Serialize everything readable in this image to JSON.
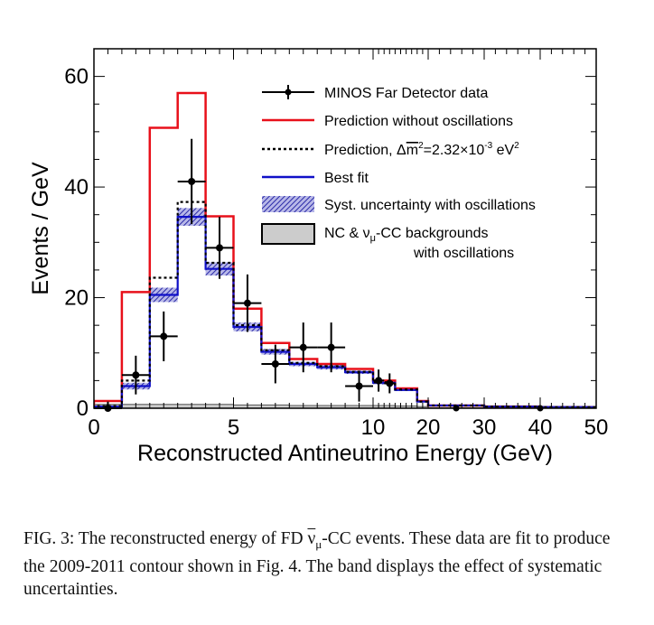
{
  "chart_data": {
    "type": "histogram",
    "xlabel": "Reconstructed Antineutrino Energy (GeV)",
    "ylabel": "Events / GeV",
    "ylim": [
      0,
      65
    ],
    "x_axis": "piecewise: linear 0-10 GeV on left two thirds, compressed 10-20 and 20-50 GeV on right",
    "x_ticks": [
      "0",
      "5",
      "10",
      "20",
      "30",
      "40",
      "50"
    ],
    "y_ticks": [
      "0",
      "20",
      "40",
      "60"
    ],
    "bin_edges": [
      0,
      1,
      2,
      3,
      4,
      5,
      6,
      7,
      8,
      9,
      10,
      12,
      14,
      16,
      18,
      20,
      30,
      40,
      50
    ],
    "series": [
      {
        "name": "Prediction without oscillations",
        "color": "#e8101a",
        "style": "solid",
        "values": [
          1.3,
          21.0,
          50.7,
          57.0,
          34.7,
          18.0,
          11.8,
          8.9,
          8.0,
          7.1,
          5.0,
          5.0,
          3.6,
          3.6,
          1.3,
          0.5,
          0.3,
          0.2
        ]
      },
      {
        "name": "Prediction, Δm² = 2.32×10⁻³ eV²",
        "color": "#000000",
        "style": "dotted",
        "values": [
          0.4,
          5.0,
          23.6,
          37.3,
          26.3,
          15.0,
          10.5,
          8.2,
          7.6,
          6.6,
          4.7,
          4.7,
          3.4,
          3.4,
          1.2,
          0.5,
          0.3,
          0.2
        ]
      },
      {
        "name": "Best fit",
        "color": "#1010c8",
        "style": "solid",
        "values": [
          0.3,
          4.0,
          20.5,
          34.6,
          25.2,
          14.7,
          10.2,
          8.0,
          7.4,
          6.5,
          4.6,
          4.6,
          3.3,
          3.3,
          1.2,
          0.5,
          0.3,
          0.2
        ]
      },
      {
        "name": "Syst. uncertainty with oscillations",
        "color": "#3030b0",
        "style": "band",
        "half_width": [
          0.2,
          0.6,
          1.3,
          1.6,
          1.2,
          0.8,
          0.5,
          0.4,
          0.4,
          0.3,
          0.3,
          0.3,
          0.2,
          0.2,
          0.1,
          0.1,
          0.1,
          0.1
        ]
      },
      {
        "name": "NC & νμ-CC backgrounds with oscillations",
        "color": "#cccccc",
        "style": "filled",
        "values": [
          0.7,
          0.7,
          0.7,
          0.7,
          0.7,
          0.6,
          0.6,
          0.5,
          0.5,
          0.5,
          0.5,
          0.5,
          0.4,
          0.4,
          0.3,
          0.1,
          0.1,
          0.1
        ]
      }
    ],
    "data_points": {
      "name": "MINOS Far Detector data",
      "x": [
        0.5,
        1.5,
        2.5,
        3.5,
        4.5,
        5.5,
        6.5,
        7.5,
        8.5,
        9.5,
        11.0,
        13.0
      ],
      "y": [
        0,
        6,
        13,
        41,
        29,
        19,
        8,
        11,
        11,
        4,
        5,
        4.5
      ],
      "yerr": [
        1.2,
        3.5,
        4.5,
        7.7,
        5.6,
        5.2,
        3.5,
        4.5,
        4.5,
        2.8,
        2.0,
        1.8
      ]
    },
    "extra_points": {
      "x": [
        25,
        40
      ],
      "y": [
        0,
        0
      ]
    },
    "legend_position": "top-right"
  },
  "legend": {
    "data": "MINOS Far Detector data",
    "noosc": "Prediction without oscillations",
    "pred_prefix": "Prediction, Δ",
    "pred_m": "m",
    "pred_mid": "=2.32×10",
    "pred_exp": "-3",
    "pred_unit": " eV",
    "pred_unit_exp": "2",
    "sq": "2",
    "bestfit": "Best fit",
    "syst": "Syst. uncertainty with oscillations",
    "bg_line1_a": "NC & ν",
    "bg_line1_sub": "μ",
    "bg_line1_b": "-CC backgrounds",
    "bg_line2": "with oscillations"
  },
  "caption": "FIG. 3: The reconstructed energy of FD ν̄μ-CC events. These data are fit to produce the 2009-2011 contour shown in Fig. 4. The band displays the effect of systematic uncertainties."
}
